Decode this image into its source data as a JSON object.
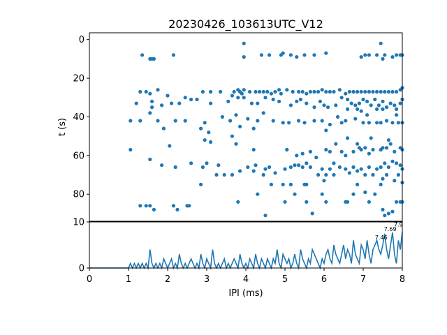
{
  "chart_data": [
    {
      "type": "scatter",
      "title": "20230426_103613UTC_V12",
      "xlabel": "",
      "ylabel": "t (s)",
      "xlim": [
        0,
        8
      ],
      "ylim": [
        94,
        -3.5
      ],
      "y_inverted": true,
      "yticks": [
        0,
        20,
        40,
        60,
        80
      ],
      "color": "#1f77b4",
      "points": [
        [
          1.35,
          8
        ],
        [
          1.55,
          10
        ],
        [
          1.6,
          10
        ],
        [
          1.65,
          10
        ],
        [
          2.15,
          8
        ],
        [
          3.95,
          2
        ],
        [
          3.95,
          9
        ],
        [
          4.4,
          8
        ],
        [
          4.6,
          8
        ],
        [
          4.9,
          8
        ],
        [
          4.95,
          7
        ],
        [
          5.15,
          8
        ],
        [
          5.3,
          9
        ],
        [
          5.5,
          8
        ],
        [
          5.75,
          8
        ],
        [
          6.05,
          7
        ],
        [
          6.95,
          9
        ],
        [
          7.05,
          8
        ],
        [
          7.15,
          8
        ],
        [
          7.35,
          8
        ],
        [
          7.45,
          2
        ],
        [
          7.5,
          10
        ],
        [
          7.55,
          8
        ],
        [
          7.75,
          9
        ],
        [
          7.85,
          8
        ],
        [
          7.95,
          8
        ],
        [
          8.0,
          8
        ],
        [
          1.3,
          27
        ],
        [
          1.2,
          33
        ],
        [
          1.45,
          27
        ],
        [
          1.55,
          28
        ],
        [
          1.6,
          32
        ],
        [
          1.75,
          26
        ],
        [
          1.85,
          34
        ],
        [
          1.6,
          35
        ],
        [
          2.0,
          29
        ],
        [
          2.1,
          33
        ],
        [
          2.3,
          33
        ],
        [
          2.45,
          30
        ],
        [
          2.6,
          31
        ],
        [
          2.75,
          31
        ],
        [
          2.9,
          27
        ],
        [
          3.1,
          27
        ],
        [
          3.35,
          27
        ],
        [
          3.7,
          27
        ],
        [
          3.8,
          26
        ],
        [
          3.85,
          27
        ],
        [
          3.9,
          28
        ],
        [
          3.95,
          26
        ],
        [
          3.65,
          29
        ],
        [
          4.1,
          27
        ],
        [
          4.25,
          27
        ],
        [
          4.35,
          27
        ],
        [
          4.45,
          27
        ],
        [
          4.55,
          27
        ],
        [
          4.65,
          28
        ],
        [
          4.75,
          27
        ],
        [
          4.85,
          26
        ],
        [
          4.9,
          28
        ],
        [
          5.05,
          26
        ],
        [
          5.2,
          27
        ],
        [
          5.35,
          27
        ],
        [
          5.45,
          27
        ],
        [
          5.55,
          28
        ],
        [
          5.65,
          27
        ],
        [
          5.75,
          27
        ],
        [
          5.85,
          27
        ],
        [
          5.95,
          26
        ],
        [
          6.05,
          27
        ],
        [
          6.15,
          27
        ],
        [
          6.25,
          27
        ],
        [
          6.4,
          26
        ],
        [
          6.55,
          28
        ],
        [
          6.65,
          27
        ],
        [
          6.75,
          27
        ],
        [
          6.85,
          27
        ],
        [
          6.95,
          27
        ],
        [
          7.05,
          27
        ],
        [
          7.15,
          27
        ],
        [
          7.25,
          27
        ],
        [
          7.35,
          27
        ],
        [
          7.45,
          27
        ],
        [
          7.55,
          27
        ],
        [
          7.65,
          27
        ],
        [
          7.75,
          27
        ],
        [
          7.85,
          27
        ],
        [
          7.95,
          26
        ],
        [
          8.0,
          25
        ],
        [
          3.1,
          33
        ],
        [
          3.55,
          32
        ],
        [
          3.8,
          30
        ],
        [
          3.95,
          30
        ],
        [
          4.15,
          33
        ],
        [
          4.3,
          33
        ],
        [
          4.5,
          30
        ],
        [
          4.7,
          31
        ],
        [
          4.85,
          32
        ],
        [
          5.15,
          34
        ],
        [
          5.3,
          32
        ],
        [
          5.4,
          31
        ],
        [
          5.55,
          33
        ],
        [
          5.75,
          35
        ],
        [
          5.9,
          32
        ],
        [
          6.0,
          34
        ],
        [
          6.1,
          35
        ],
        [
          6.3,
          34
        ],
        [
          6.45,
          30
        ],
        [
          6.6,
          31
        ],
        [
          6.7,
          33
        ],
        [
          6.8,
          34
        ],
        [
          6.9,
          33
        ],
        [
          7.0,
          31
        ],
        [
          7.1,
          32
        ],
        [
          7.2,
          34
        ],
        [
          7.3,
          31
        ],
        [
          7.4,
          34
        ],
        [
          7.5,
          32
        ],
        [
          7.6,
          35
        ],
        [
          7.7,
          33
        ],
        [
          7.8,
          34
        ],
        [
          7.85,
          36
        ],
        [
          7.95,
          33
        ],
        [
          8.0,
          31
        ],
        [
          6.95,
          37
        ],
        [
          6.85,
          36
        ],
        [
          7.35,
          36
        ],
        [
          7.5,
          36
        ],
        [
          6.6,
          36
        ],
        [
          1.05,
          42
        ],
        [
          1.3,
          42
        ],
        [
          1.55,
          38
        ],
        [
          1.75,
          42
        ],
        [
          1.9,
          46
        ],
        [
          2.2,
          42
        ],
        [
          2.45,
          42
        ],
        [
          2.85,
          46
        ],
        [
          2.95,
          43
        ],
        [
          3.05,
          48
        ],
        [
          3.4,
          40
        ],
        [
          3.6,
          42
        ],
        [
          3.75,
          39
        ],
        [
          3.85,
          45
        ],
        [
          4.05,
          41
        ],
        [
          4.2,
          46
        ],
        [
          4.3,
          42
        ],
        [
          4.45,
          38
        ],
        [
          4.7,
          42
        ],
        [
          4.95,
          43
        ],
        [
          5.1,
          43
        ],
        [
          5.35,
          42
        ],
        [
          5.5,
          43
        ],
        [
          5.75,
          42
        ],
        [
          5.95,
          42
        ],
        [
          6.05,
          47
        ],
        [
          6.15,
          44
        ],
        [
          6.35,
          40
        ],
        [
          6.45,
          43
        ],
        [
          6.55,
          42
        ],
        [
          6.8,
          41
        ],
        [
          7.0,
          43
        ],
        [
          7.15,
          43
        ],
        [
          7.35,
          43
        ],
        [
          7.45,
          43
        ],
        [
          7.6,
          42
        ],
        [
          7.75,
          43
        ],
        [
          7.9,
          43
        ],
        [
          8.0,
          43
        ],
        [
          7.1,
          39
        ],
        [
          7.85,
          39
        ],
        [
          1.05,
          57
        ],
        [
          2.05,
          55
        ],
        [
          2.95,
          52
        ],
        [
          3.1,
          53
        ],
        [
          3.65,
          50
        ],
        [
          3.75,
          54
        ],
        [
          4.2,
          57
        ],
        [
          5.05,
          57
        ],
        [
          5.3,
          60
        ],
        [
          5.45,
          59
        ],
        [
          5.65,
          58
        ],
        [
          5.8,
          61
        ],
        [
          6.05,
          57
        ],
        [
          6.15,
          58
        ],
        [
          6.3,
          54
        ],
        [
          6.45,
          58
        ],
        [
          6.55,
          60
        ],
        [
          6.75,
          58
        ],
        [
          6.85,
          54
        ],
        [
          6.9,
          56
        ],
        [
          6.95,
          57
        ],
        [
          7.05,
          56
        ],
        [
          7.15,
          59
        ],
        [
          7.25,
          57
        ],
        [
          7.45,
          57
        ],
        [
          7.5,
          56
        ],
        [
          7.6,
          56
        ],
        [
          7.7,
          54
        ],
        [
          7.8,
          58
        ],
        [
          7.95,
          56
        ],
        [
          8.0,
          57
        ],
        [
          6.6,
          51
        ],
        [
          7.2,
          51
        ],
        [
          7.65,
          52
        ],
        [
          1.55,
          62
        ],
        [
          1.85,
          65
        ],
        [
          2.2,
          66
        ],
        [
          2.6,
          64
        ],
        [
          2.9,
          66
        ],
        [
          3.0,
          64
        ],
        [
          3.3,
          65
        ],
        [
          3.65,
          70
        ],
        [
          3.85,
          68
        ],
        [
          4.05,
          66
        ],
        [
          4.2,
          68
        ],
        [
          4.25,
          65
        ],
        [
          4.45,
          70
        ],
        [
          4.5,
          67
        ],
        [
          4.6,
          66
        ],
        [
          4.75,
          69
        ],
        [
          4.95,
          75
        ],
        [
          5.0,
          67
        ],
        [
          5.15,
          66
        ],
        [
          5.25,
          65
        ],
        [
          5.35,
          65
        ],
        [
          5.45,
          66
        ],
        [
          5.55,
          64
        ],
        [
          5.65,
          66
        ],
        [
          5.85,
          70
        ],
        [
          5.95,
          67
        ],
        [
          6.05,
          70
        ],
        [
          6.15,
          67
        ],
        [
          6.25,
          64
        ],
        [
          6.4,
          66
        ],
        [
          6.55,
          67
        ],
        [
          6.65,
          69
        ],
        [
          6.75,
          66
        ],
        [
          6.85,
          68
        ],
        [
          6.95,
          67
        ],
        [
          7.05,
          70
        ],
        [
          7.15,
          66
        ],
        [
          7.25,
          70
        ],
        [
          7.35,
          67
        ],
        [
          7.45,
          66
        ],
        [
          7.55,
          64
        ],
        [
          7.65,
          66
        ],
        [
          7.75,
          63
        ],
        [
          7.85,
          64
        ],
        [
          7.95,
          65
        ],
        [
          8.0,
          67
        ],
        [
          7.5,
          72
        ],
        [
          7.6,
          70
        ],
        [
          7.8,
          73
        ],
        [
          7.9,
          70
        ],
        [
          8.0,
          74
        ],
        [
          1.3,
          86
        ],
        [
          1.45,
          86
        ],
        [
          1.55,
          86
        ],
        [
          1.65,
          88
        ],
        [
          2.15,
          86
        ],
        [
          2.25,
          88
        ],
        [
          2.5,
          86
        ],
        [
          2.55,
          86
        ],
        [
          2.85,
          75
        ],
        [
          3.25,
          70
        ],
        [
          3.45,
          70
        ],
        [
          3.8,
          84
        ],
        [
          4.3,
          80
        ],
        [
          4.5,
          91
        ],
        [
          4.65,
          75
        ],
        [
          5.0,
          84
        ],
        [
          5.15,
          75
        ],
        [
          5.25,
          80
        ],
        [
          5.5,
          75
        ],
        [
          5.55,
          75
        ],
        [
          5.55,
          84
        ],
        [
          5.7,
          90
        ],
        [
          5.95,
          80
        ],
        [
          6.0,
          73
        ],
        [
          6.05,
          84
        ],
        [
          6.25,
          70
        ],
        [
          6.55,
          84
        ],
        [
          6.6,
          84
        ],
        [
          6.75,
          80
        ],
        [
          6.85,
          75
        ],
        [
          7.05,
          79
        ],
        [
          7.15,
          84
        ],
        [
          7.3,
          80
        ],
        [
          7.45,
          75
        ],
        [
          7.5,
          88
        ],
        [
          7.55,
          91
        ],
        [
          7.65,
          90
        ],
        [
          7.75,
          89
        ],
        [
          7.85,
          84
        ],
        [
          7.95,
          84
        ],
        [
          8.0,
          84
        ]
      ]
    },
    {
      "type": "line",
      "xlabel": "IPI (ms)",
      "ylabel": "",
      "xlim": [
        0,
        8
      ],
      "ylim": [
        0,
        10
      ],
      "xticks": [
        0,
        1,
        2,
        3,
        4,
        5,
        6,
        7,
        8
      ],
      "yticks": [
        0,
        10
      ],
      "color": "#1f77b4",
      "x": [
        0,
        1.0,
        1.05,
        1.1,
        1.15,
        1.2,
        1.25,
        1.3,
        1.35,
        1.4,
        1.45,
        1.5,
        1.55,
        1.6,
        1.65,
        1.7,
        1.75,
        1.8,
        1.85,
        1.9,
        1.95,
        2.0,
        2.05,
        2.1,
        2.15,
        2.2,
        2.25,
        2.3,
        2.35,
        2.4,
        2.45,
        2.5,
        2.55,
        2.6,
        2.65,
        2.7,
        2.75,
        2.8,
        2.85,
        2.9,
        2.95,
        3.0,
        3.05,
        3.1,
        3.15,
        3.2,
        3.25,
        3.3,
        3.35,
        3.4,
        3.45,
        3.5,
        3.55,
        3.6,
        3.65,
        3.7,
        3.75,
        3.8,
        3.85,
        3.9,
        3.95,
        4.0,
        4.05,
        4.1,
        4.15,
        4.2,
        4.25,
        4.3,
        4.35,
        4.4,
        4.45,
        4.5,
        4.55,
        4.6,
        4.65,
        4.7,
        4.75,
        4.8,
        4.85,
        4.9,
        4.95,
        5.0,
        5.05,
        5.1,
        5.15,
        5.2,
        5.25,
        5.3,
        5.35,
        5.4,
        5.45,
        5.5,
        5.55,
        5.6,
        5.65,
        5.7,
        5.75,
        5.8,
        5.85,
        5.9,
        5.95,
        6.0,
        6.05,
        6.1,
        6.15,
        6.2,
        6.25,
        6.3,
        6.35,
        6.4,
        6.45,
        6.5,
        6.55,
        6.6,
        6.65,
        6.7,
        6.75,
        6.8,
        6.85,
        6.9,
        6.95,
        7.0,
        7.05,
        7.1,
        7.15,
        7.2,
        7.25,
        7.3,
        7.35,
        7.4,
        7.45,
        7.5,
        7.55,
        7.6,
        7.65,
        7.7,
        7.75,
        7.8,
        7.85,
        7.9,
        7.95,
        8.0
      ],
      "y": [
        0,
        0,
        1,
        0,
        1,
        0,
        1,
        0,
        1,
        0,
        1,
        0,
        4,
        1,
        0,
        1,
        0,
        1,
        0,
        2,
        1,
        0,
        1,
        2,
        0,
        1,
        0,
        3,
        1,
        0,
        1,
        0,
        1,
        2,
        1,
        0,
        1,
        0,
        3,
        1,
        0,
        2,
        1,
        0,
        4,
        1,
        0,
        1,
        0,
        1,
        2,
        0,
        1,
        0,
        1,
        2,
        1,
        0,
        3,
        1,
        0,
        1,
        0,
        2,
        1,
        0,
        3,
        1,
        0,
        2,
        1,
        0,
        2,
        1,
        0,
        2,
        1,
        4,
        1,
        0,
        3,
        2,
        1,
        2,
        0,
        1,
        3,
        1,
        0,
        4,
        2,
        1,
        0,
        2,
        1,
        4,
        3,
        2,
        1,
        0,
        2,
        1,
        3,
        4,
        2,
        1,
        5,
        3,
        2,
        1,
        3,
        5,
        2,
        4,
        3,
        1,
        6,
        3,
        2,
        1,
        5,
        4,
        2,
        6,
        3,
        1,
        4,
        5,
        6,
        4,
        3,
        5,
        7.46,
        4,
        2,
        5,
        7.69,
        3,
        1,
        6,
        4,
        7.9
      ],
      "annotations": [
        {
          "x": 7.46,
          "y": 6.2,
          "text": "7.46"
        },
        {
          "x": 7.69,
          "y": 8.0,
          "text": "7.69"
        },
        {
          "x": 7.9,
          "y": 9.0,
          "text": "7.9"
        }
      ]
    }
  ]
}
